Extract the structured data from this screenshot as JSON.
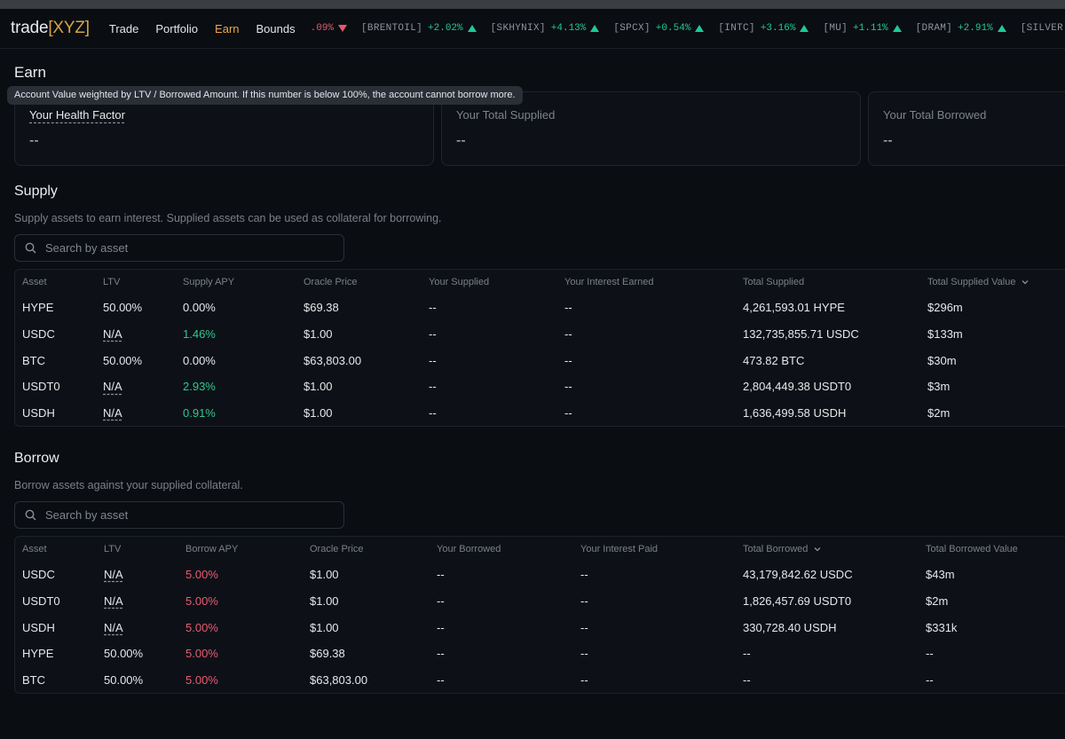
{
  "brand": {
    "prefix": "trade",
    "open": "[",
    "name": "XYZ",
    "close": "]"
  },
  "nav": [
    "Trade",
    "Portfolio",
    "Earn",
    "Bounds"
  ],
  "ticker": [
    {
      "sym": "",
      "chg": ".09%",
      "dir": "down"
    },
    {
      "sym": "[BRENTOIL]",
      "chg": "+2.02%",
      "dir": "up"
    },
    {
      "sym": "[SKHYNIX]",
      "chg": "+4.13%",
      "dir": "up"
    },
    {
      "sym": "[SPCX]",
      "chg": "+0.54%",
      "dir": "up"
    },
    {
      "sym": "[INTC]",
      "chg": "+3.16%",
      "dir": "up"
    },
    {
      "sym": "[MU]",
      "chg": "+1.11%",
      "dir": "up"
    },
    {
      "sym": "[DRAM]",
      "chg": "+2.91%",
      "dir": "up"
    },
    {
      "sym": "[SILVER",
      "chg": "",
      "dir": ""
    }
  ],
  "page_title": "Earn",
  "tooltip": "Account Value weighted by LTV / Borrowed Amount. If this number is below 100%, the account cannot borrow more.",
  "cards": [
    {
      "label": "Your Health Factor",
      "value": "--"
    },
    {
      "label": "Your Total Supplied",
      "value": "--"
    },
    {
      "label": "Your Total Borrowed",
      "value": "--"
    }
  ],
  "supply": {
    "title": "Supply",
    "desc": "Supply assets to earn interest. Supplied assets can be used as collateral for borrowing.",
    "search_placeholder": "Search by asset",
    "columns": [
      "Asset",
      "LTV",
      "Supply APY",
      "Oracle Price",
      "Your Supplied",
      "Your Interest Earned",
      "Total Supplied",
      "Total Supplied Value"
    ],
    "rows": [
      [
        "HYPE",
        "50.00%",
        "0.00%",
        "$69.38",
        "--",
        "--",
        "4,261,593.01 HYPE",
        "$296m"
      ],
      [
        "USDC",
        "N/A",
        "1.46%",
        "$1.00",
        "--",
        "--",
        "132,735,855.71 USDC",
        "$133m"
      ],
      [
        "BTC",
        "50.00%",
        "0.00%",
        "$63,803.00",
        "--",
        "--",
        "473.82 BTC",
        "$30m"
      ],
      [
        "USDT0",
        "N/A",
        "2.93%",
        "$1.00",
        "--",
        "--",
        "2,804,449.38 USDT0",
        "$3m"
      ],
      [
        "USDH",
        "N/A",
        "0.91%",
        "$1.00",
        "--",
        "--",
        "1,636,499.58 USDH",
        "$2m"
      ]
    ]
  },
  "borrow": {
    "title": "Borrow",
    "desc": "Borrow assets against your supplied collateral.",
    "search_placeholder": "Search by asset",
    "columns": [
      "Asset",
      "LTV",
      "Borrow APY",
      "Oracle Price",
      "Your Borrowed",
      "Your Interest Paid",
      "Total Borrowed",
      "Total Borrowed Value"
    ],
    "rows": [
      [
        "USDC",
        "N/A",
        "5.00%",
        "$1.00",
        "--",
        "--",
        "43,179,842.62 USDC",
        "$43m"
      ],
      [
        "USDT0",
        "N/A",
        "5.00%",
        "$1.00",
        "--",
        "--",
        "1,826,457.69 USDT0",
        "$2m"
      ],
      [
        "USDH",
        "N/A",
        "5.00%",
        "$1.00",
        "--",
        "--",
        "330,728.40 USDH",
        "$331k"
      ],
      [
        "HYPE",
        "50.00%",
        "5.00%",
        "$69.38",
        "--",
        "--",
        "--",
        "--"
      ],
      [
        "BTC",
        "50.00%",
        "5.00%",
        "$63,803.00",
        "--",
        "--",
        "--",
        "--"
      ]
    ]
  },
  "colors": {
    "accent": "#e9a84b",
    "positive": "#2fc88e",
    "negative": "#ea5a72",
    "background": "#0a0d12"
  }
}
